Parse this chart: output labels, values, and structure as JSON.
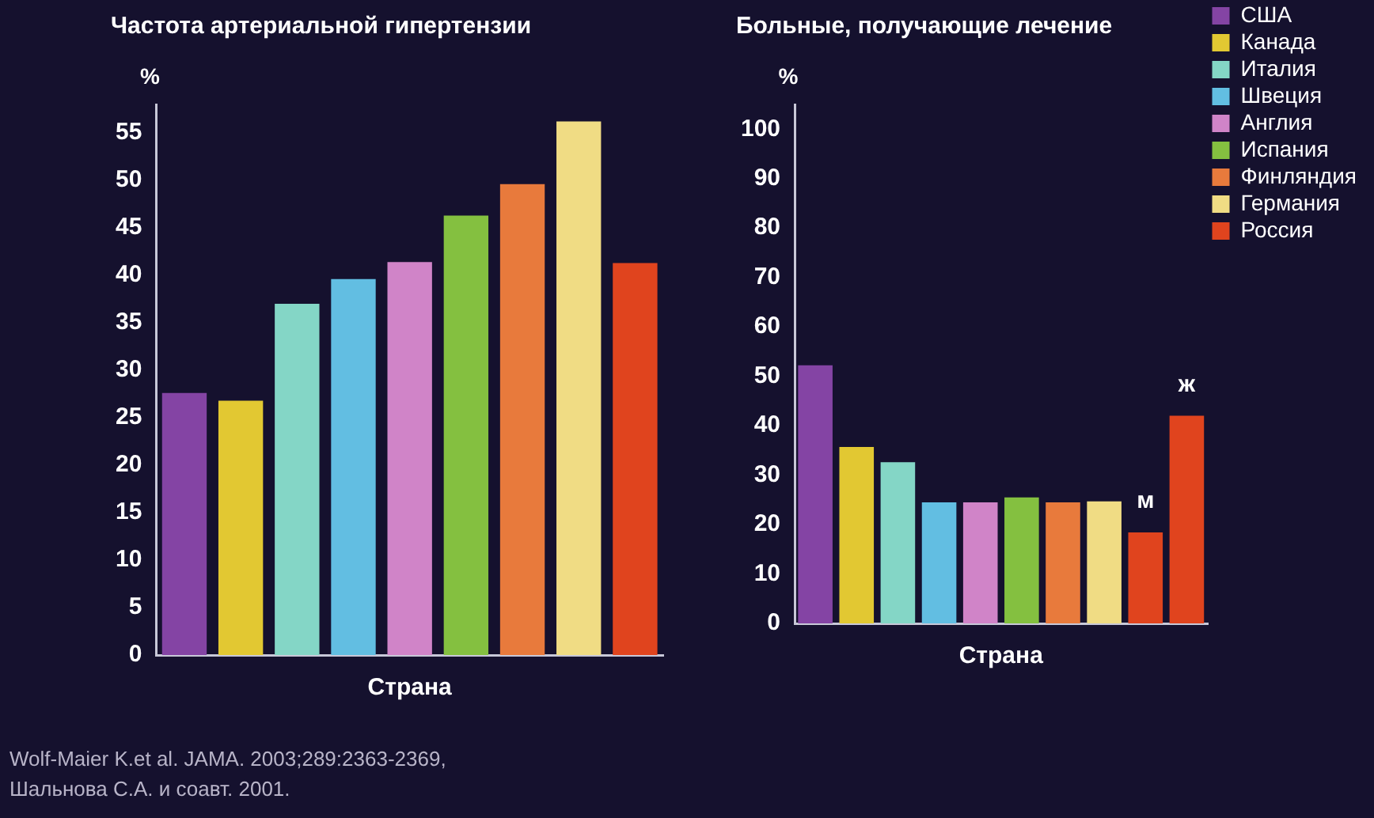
{
  "chart_data": [
    {
      "type": "bar",
      "title": "Частота артериальной гипертензии",
      "xlabel": "Страна",
      "ylabel": "%",
      "categories": [
        null,
        null,
        null,
        null,
        null,
        null,
        null,
        null,
        null
      ],
      "values": [
        27.6,
        26.8,
        37,
        39.6,
        41.4,
        46.3,
        49.6,
        56.2,
        41.3
      ],
      "colors": [
        "#8444a4",
        "#e2c832",
        "#84d6c6",
        "#62bee2",
        "#d084c8",
        "#84c040",
        "#e87a3c",
        "#f0dc84",
        "#e0441e"
      ],
      "ylim": [
        0,
        58
      ],
      "yticks": [
        0,
        5,
        10,
        15,
        20,
        25,
        30,
        35,
        40,
        45,
        50,
        55
      ],
      "grid": false,
      "legend": false,
      "annotations": [
        "Wolf-Maier K.et al. JAMA. 2003;289:2363-2369,",
        "Шальнова С.А. и соавт. 2001."
      ]
    },
    {
      "type": "bar",
      "title": "Больные, получающие лечение",
      "xlabel": "Страна",
      "ylabel": "%",
      "categories": [
        null,
        null,
        null,
        null,
        null,
        null,
        null,
        null,
        "м",
        "ж"
      ],
      "series": [
        {
          "name": "США",
          "color": "#8444a4",
          "values": [
            52.2,
            null,
            null,
            null,
            null,
            null,
            null,
            null,
            null,
            null
          ]
        },
        {
          "name": "Канада",
          "color": "#e2c832",
          "values": [
            null,
            35.7,
            null,
            null,
            null,
            null,
            null,
            null,
            null,
            null
          ]
        },
        {
          "name": "Италия",
          "color": "#84d6c6",
          "values": [
            null,
            null,
            32.6,
            null,
            null,
            null,
            null,
            null,
            null,
            null
          ]
        },
        {
          "name": "Швеция",
          "color": "#62bee2",
          "values": [
            null,
            null,
            null,
            24.5,
            null,
            null,
            null,
            null,
            null,
            null
          ]
        },
        {
          "name": "Англия",
          "color": "#d084c8",
          "values": [
            null,
            null,
            null,
            null,
            24.5,
            null,
            null,
            null,
            null,
            null
          ]
        },
        {
          "name": "Испания",
          "color": "#84c040",
          "values": [
            null,
            null,
            null,
            null,
            null,
            25.5,
            null,
            null,
            null,
            null
          ]
        },
        {
          "name": "Финляндия",
          "color": "#e87a3c",
          "values": [
            null,
            null,
            null,
            null,
            null,
            null,
            24.5,
            null,
            null,
            null
          ]
        },
        {
          "name": "Германия",
          "color": "#f0dc84",
          "values": [
            null,
            null,
            null,
            null,
            null,
            null,
            null,
            24.7,
            null,
            null
          ]
        },
        {
          "name": "Россия",
          "color": "#e0441e",
          "values": [
            null,
            null,
            null,
            null,
            null,
            null,
            null,
            null,
            18.4,
            42
          ]
        }
      ],
      "ylim": [
        0,
        105
      ],
      "yticks": [
        0,
        10,
        20,
        30,
        40,
        50,
        60,
        70,
        80,
        90,
        100
      ],
      "grid": false,
      "legend": "top right"
    }
  ]
}
